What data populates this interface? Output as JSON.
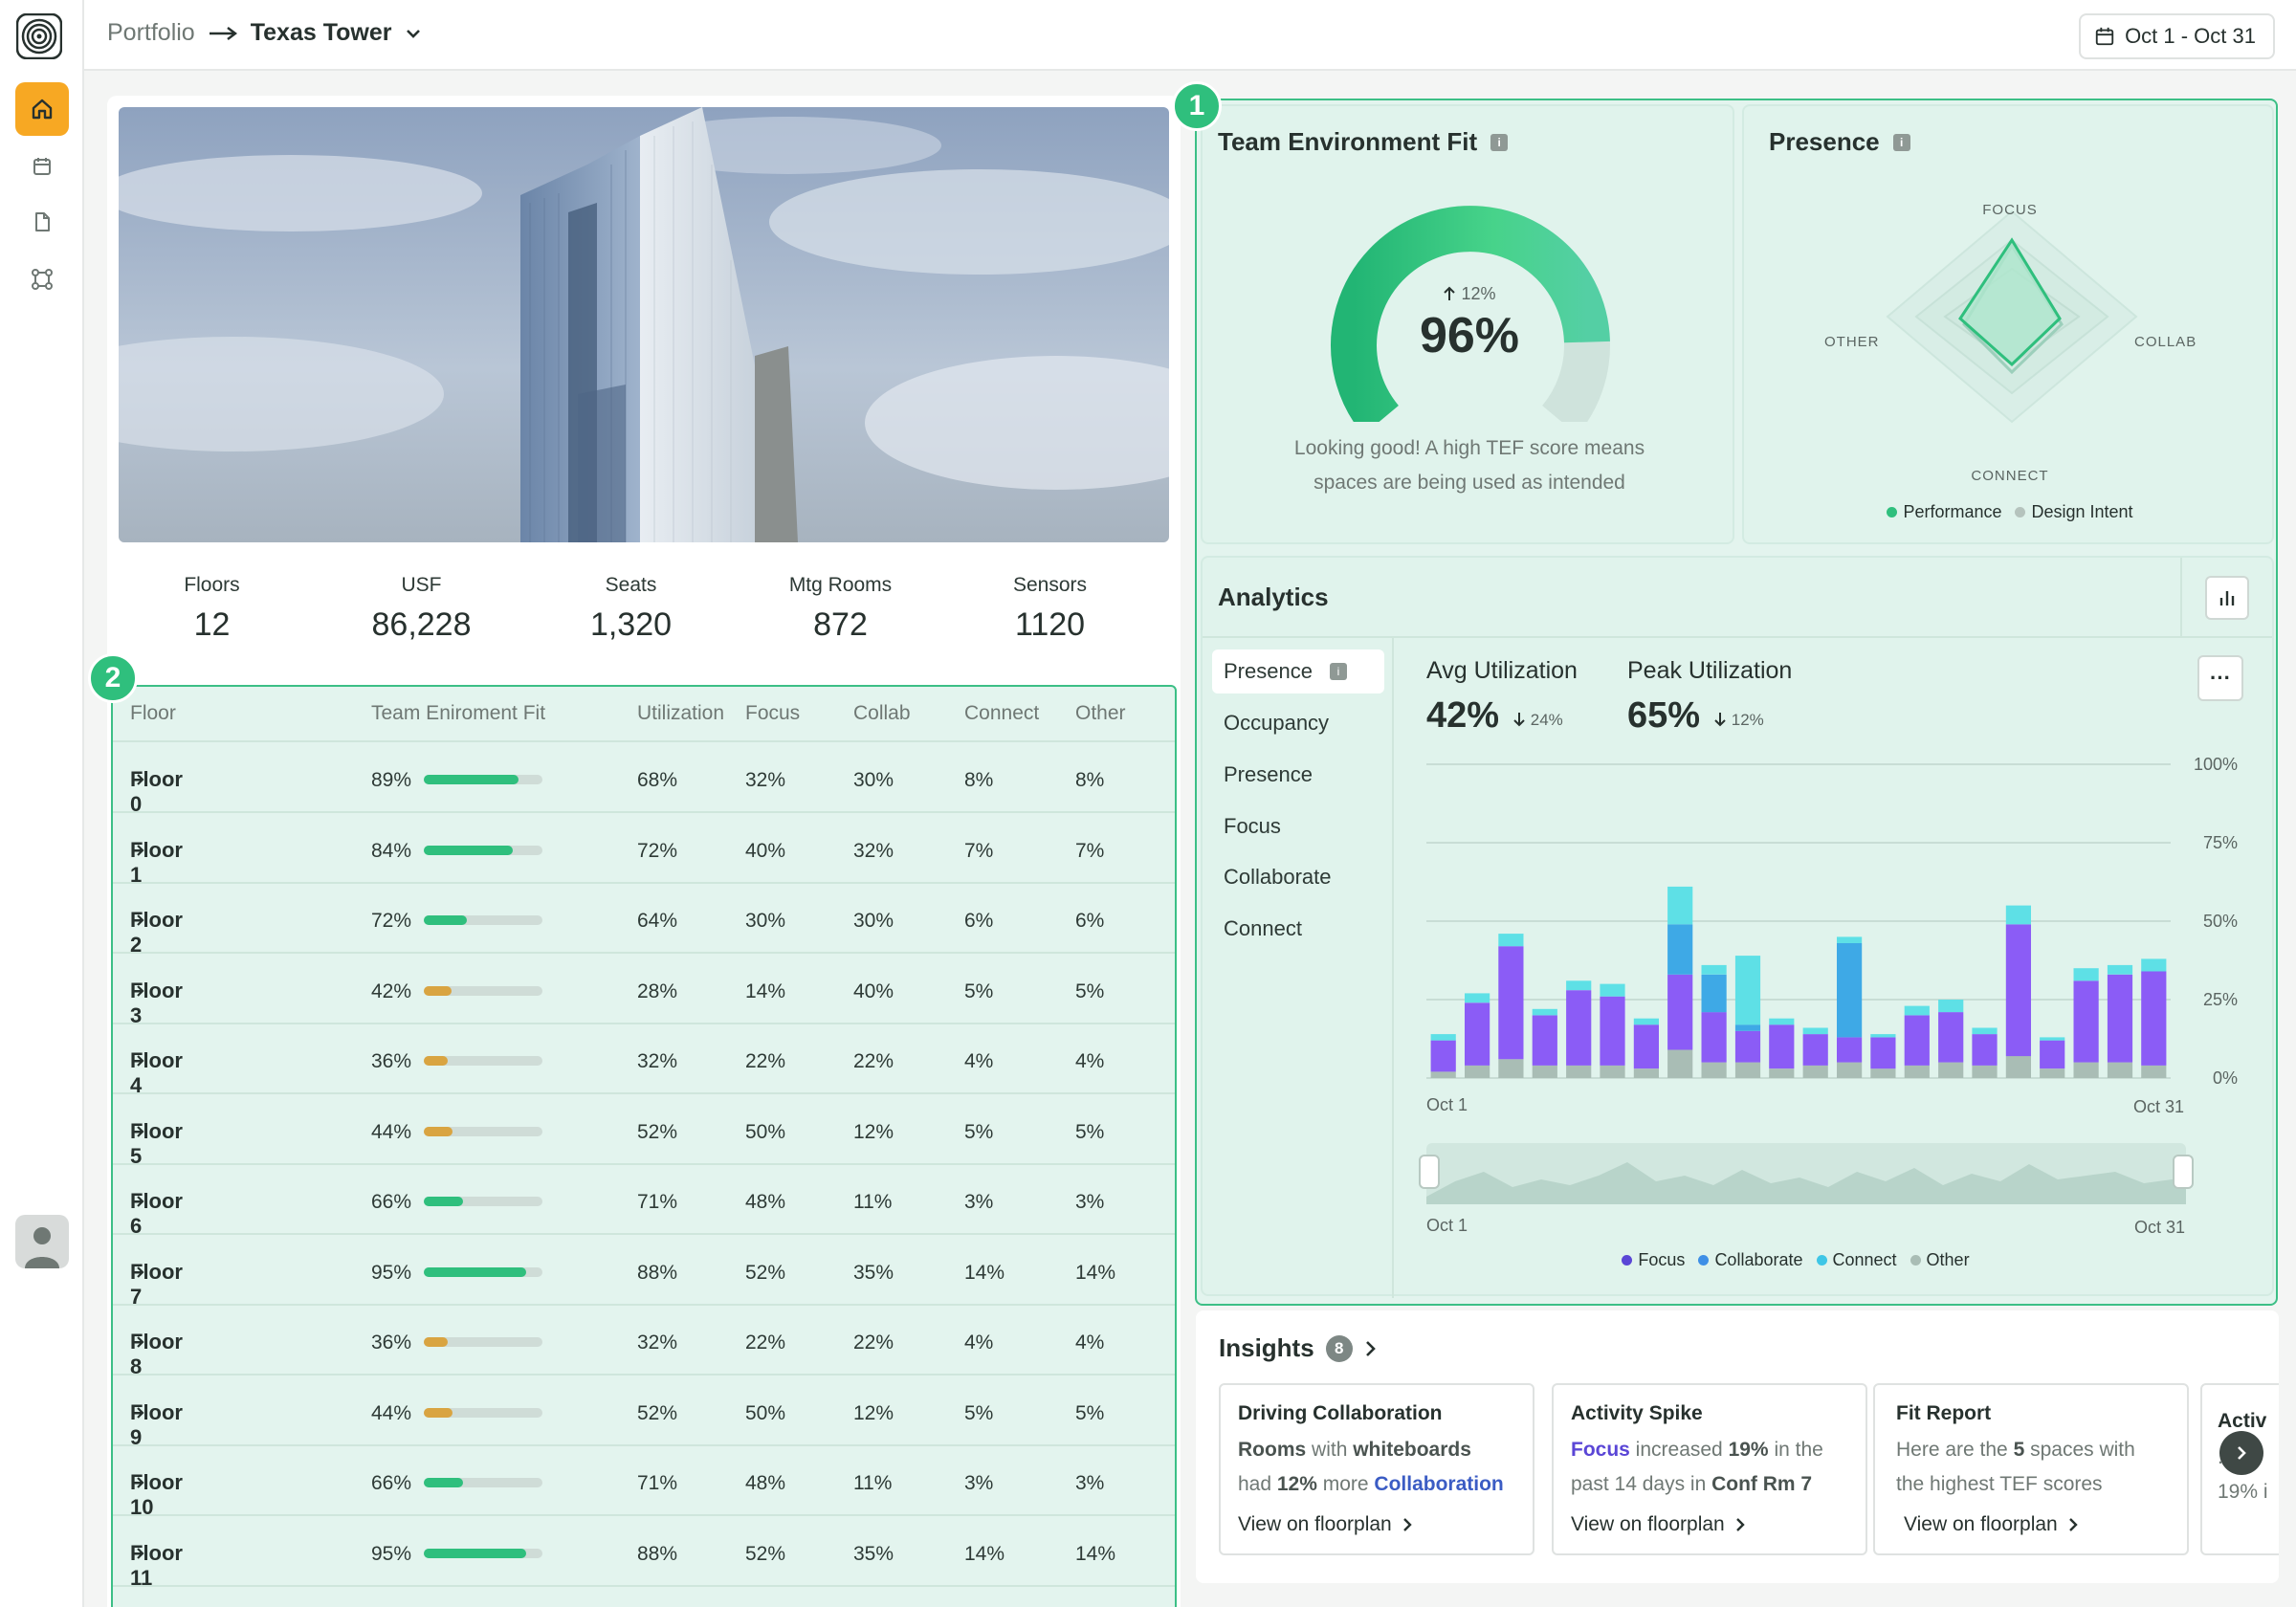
{
  "breadcrumb": {
    "portfolio": "Portfolio",
    "current": "Texas Tower"
  },
  "date_range": "Oct 1 - Oct 31",
  "stats": [
    {
      "label": "Floors",
      "value": "12"
    },
    {
      "label": "USF",
      "value": "86,228"
    },
    {
      "label": "Seats",
      "value": "1,320"
    },
    {
      "label": "Mtg Rooms",
      "value": "872"
    },
    {
      "label": "Sensors",
      "value": "1120"
    }
  ],
  "badges": {
    "tef": "1",
    "table": "2"
  },
  "table": {
    "headers": [
      "Floor",
      "Team Eniroment Fit",
      "Utilization",
      "Focus",
      "Collab",
      "Connect",
      "Other"
    ],
    "rows": [
      {
        "floor": "Floor 0",
        "tef": "89%",
        "tef_level": 0.89,
        "util": "68%",
        "focus": "32%",
        "collab": "30%",
        "connect": "8%",
        "other": "8%"
      },
      {
        "floor": "Floor 1",
        "tef": "84%",
        "tef_level": 0.84,
        "util": "72%",
        "focus": "40%",
        "collab": "32%",
        "connect": "7%",
        "other": "7%"
      },
      {
        "floor": "Floor 2",
        "tef": "72%",
        "tef_level": 0.72,
        "util": "64%",
        "focus": "30%",
        "collab": "30%",
        "connect": "6%",
        "other": "6%"
      },
      {
        "floor": "Floor 3",
        "tef": "42%",
        "tef_level": 0.42,
        "util": "28%",
        "focus": "14%",
        "collab": "40%",
        "connect": "5%",
        "other": "5%"
      },
      {
        "floor": "Floor 4",
        "tef": "36%",
        "tef_level": 0.36,
        "util": "32%",
        "focus": "22%",
        "collab": "22%",
        "connect": "4%",
        "other": "4%"
      },
      {
        "floor": "Floor 5",
        "tef": "44%",
        "tef_level": 0.44,
        "util": "52%",
        "focus": "50%",
        "collab": "12%",
        "connect": "5%",
        "other": "5%"
      },
      {
        "floor": "Floor 6",
        "tef": "66%",
        "tef_level": 0.66,
        "util": "71%",
        "focus": "48%",
        "collab": "11%",
        "connect": "3%",
        "other": "3%"
      },
      {
        "floor": "Floor 7",
        "tef": "95%",
        "tef_level": 0.95,
        "util": "88%",
        "focus": "52%",
        "collab": "35%",
        "connect": "14%",
        "other": "14%"
      },
      {
        "floor": "Floor 8",
        "tef": "36%",
        "tef_level": 0.36,
        "util": "32%",
        "focus": "22%",
        "collab": "22%",
        "connect": "4%",
        "other": "4%"
      },
      {
        "floor": "Floor 9",
        "tef": "44%",
        "tef_level": 0.44,
        "util": "52%",
        "focus": "50%",
        "collab": "12%",
        "connect": "5%",
        "other": "5%"
      },
      {
        "floor": "Floor 10",
        "tef": "66%",
        "tef_level": 0.66,
        "util": "71%",
        "focus": "48%",
        "collab": "11%",
        "connect": "3%",
        "other": "3%"
      },
      {
        "floor": "Floor 11",
        "tef": "95%",
        "tef_level": 0.95,
        "util": "88%",
        "focus": "52%",
        "collab": "35%",
        "connect": "14%",
        "other": "14%"
      }
    ]
  },
  "tef_card": {
    "title": "Team Environment Fit",
    "delta": "12%",
    "value": "96%",
    "level": 0.96,
    "desc_line1": "Looking good! A high TEF score means",
    "desc_line2": "spaces are being used as intended"
  },
  "presence_card": {
    "title": "Presence",
    "axes": {
      "top": "FOCUS",
      "right": "COLLAB",
      "bottom": "CONNECT",
      "left": "OTHER"
    },
    "legend": [
      "Performance",
      "Design Intent"
    ]
  },
  "analytics": {
    "title": "Analytics",
    "nav": [
      "Presence",
      "Occupancy",
      "Presence",
      "Focus",
      "Collaborate",
      "Connect"
    ],
    "avg_label": "Avg Utilization",
    "avg_value": "42%",
    "avg_delta": "24%",
    "peak_label": "Peak Utilization",
    "peak_value": "65%",
    "peak_delta": "12%",
    "more": "···",
    "x_start": "Oct 1",
    "x_end": "Oct 31",
    "legend": [
      "Focus",
      "Collaborate",
      "Connect",
      "Other"
    ]
  },
  "chart_data": {
    "type": "bar",
    "stacked": true,
    "ylim": [
      0,
      100
    ],
    "yticks": [
      "100%",
      "75%",
      "50%",
      "25%",
      "0%"
    ],
    "x_range": [
      "Oct 1",
      "Oct 31"
    ],
    "series": [
      {
        "name": "Other",
        "values": [
          2,
          4,
          6,
          4,
          4,
          4,
          3,
          9,
          5,
          5,
          3,
          4,
          5,
          3,
          4,
          5,
          4,
          7,
          3,
          5,
          5,
          4
        ]
      },
      {
        "name": "Focus",
        "values": [
          10,
          20,
          36,
          16,
          24,
          22,
          14,
          24,
          16,
          10,
          14,
          10,
          8,
          10,
          16,
          16,
          10,
          42,
          9,
          26,
          28,
          30
        ]
      },
      {
        "name": "Collaborate",
        "values": [
          0,
          0,
          0,
          0,
          0,
          0,
          0,
          16,
          12,
          2,
          0,
          0,
          30,
          0,
          0,
          0,
          0,
          0,
          0,
          0,
          0,
          0
        ]
      },
      {
        "name": "Connect",
        "values": [
          2,
          3,
          4,
          2,
          3,
          4,
          2,
          12,
          3,
          22,
          2,
          2,
          2,
          1,
          3,
          4,
          2,
          6,
          1,
          4,
          3,
          4
        ]
      }
    ],
    "legend_position": "bottom"
  },
  "colors": {
    "accent_green": "#2fbf7d",
    "focus": "#8b5cf6",
    "collaborate": "#3ea9e6",
    "connect": "#5ee0e6",
    "other": "#a9bdb5",
    "warn_bar": "#d9a441"
  },
  "insights": {
    "title": "Insights",
    "count": "8",
    "cards": [
      {
        "title": "Driving Collaboration",
        "link": "View on floorplan"
      },
      {
        "title": "Activity Spike",
        "link": "View on floorplan"
      },
      {
        "title": "Fit Report",
        "link": "View on floorplan"
      },
      {
        "title": "Activ",
        "body_a": "...al",
        "body_b": "19% i"
      }
    ],
    "card1": {
      "a": "Rooms",
      "b": " with ",
      "c": "whiteboards",
      "d": "had ",
      "e": "12%",
      "f": " more ",
      "g": "Collaboration"
    },
    "card2": {
      "a": "Focus",
      "b": " increased ",
      "c": "19%",
      "d": " in the",
      "e": "past 14 days in ",
      "f": "Conf Rm 7"
    },
    "card3": {
      "a": "Here are the ",
      "b": "5",
      "c": " spaces with",
      "d": "the highest TEF scores"
    }
  },
  "icons": [
    "logo-icon",
    "home-icon",
    "calendar-icon",
    "document-icon",
    "nodes-icon",
    "user-icon",
    "arrow-right-icon",
    "chevron-down-icon",
    "calendar-icon",
    "info-icon",
    "bar-chart-icon",
    "more-icon",
    "chevron-right-icon"
  ]
}
